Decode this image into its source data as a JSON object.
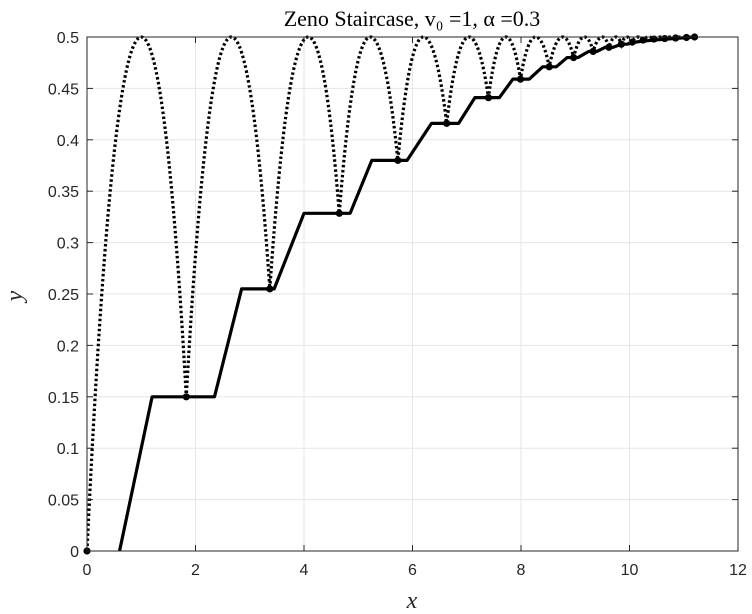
{
  "chart_data": {
    "type": "line",
    "title": "Zeno Staircase, v₀ =1, α =0.3",
    "xlabel": "x",
    "ylabel": "y",
    "xlim": [
      0,
      12
    ],
    "ylim": [
      0,
      0.5
    ],
    "x_ticks": [
      "0",
      "2",
      "4",
      "6",
      "8",
      "10",
      "12"
    ],
    "y_ticks": [
      "0",
      "0.05",
      "0.1",
      "0.15",
      "0.2",
      "0.25",
      "0.3",
      "0.35",
      "0.4",
      "0.45",
      "0.5"
    ],
    "grid": true,
    "colors": {
      "line": "#000000",
      "grid": "#e6e6e6",
      "axis": "#262626"
    },
    "series": [
      {
        "style": "dotted",
        "description": "bouncing arcs",
        "points": [
          [
            0,
            0
          ],
          [
            1.0,
            0.5
          ],
          [
            1.83,
            0.15
          ],
          [
            2.66,
            0.5
          ],
          [
            3.37,
            0.255
          ],
          [
            4.08,
            0.5
          ],
          [
            4.65,
            0.3285
          ],
          [
            5.22,
            0.5
          ],
          [
            5.73,
            0.38
          ],
          [
            6.2,
            0.5
          ],
          [
            6.63,
            0.416
          ],
          [
            7.04,
            0.5
          ],
          [
            7.4,
            0.441
          ],
          [
            7.72,
            0.5
          ],
          [
            7.99,
            0.459
          ],
          [
            8.27,
            0.5
          ],
          [
            8.52,
            0.471
          ],
          [
            8.77,
            0.5
          ],
          [
            8.97,
            0.48
          ],
          [
            9.17,
            0.5
          ],
          [
            9.33,
            0.486
          ],
          [
            9.5,
            0.5
          ],
          [
            9.62,
            0.49
          ],
          [
            9.75,
            0.5
          ],
          [
            9.85,
            0.493
          ],
          [
            9.95,
            0.5
          ],
          [
            10.05,
            0.495
          ],
          [
            10.15,
            0.5
          ],
          [
            10.25,
            0.497
          ],
          [
            10.35,
            0.5
          ],
          [
            10.45,
            0.498
          ],
          [
            10.55,
            0.5
          ],
          [
            10.65,
            0.4985
          ],
          [
            10.75,
            0.5
          ],
          [
            10.85,
            0.499
          ],
          [
            10.95,
            0.5
          ],
          [
            11.05,
            0.4995
          ],
          [
            11.2,
            0.5
          ]
        ]
      },
      {
        "style": "solid",
        "description": "staircase",
        "points": [
          [
            0.6,
            0
          ],
          [
            1.2,
            0.15
          ],
          [
            2.35,
            0.15
          ],
          [
            2.85,
            0.255
          ],
          [
            3.45,
            0.255
          ],
          [
            4.0,
            0.3285
          ],
          [
            4.85,
            0.3285
          ],
          [
            5.25,
            0.38
          ],
          [
            5.9,
            0.38
          ],
          [
            6.35,
            0.416
          ],
          [
            6.85,
            0.416
          ],
          [
            7.15,
            0.441
          ],
          [
            7.6,
            0.441
          ],
          [
            7.85,
            0.459
          ],
          [
            8.15,
            0.459
          ],
          [
            8.4,
            0.471
          ],
          [
            8.65,
            0.471
          ],
          [
            8.85,
            0.48
          ],
          [
            9.05,
            0.48
          ],
          [
            9.25,
            0.486
          ],
          [
            9.4,
            0.486
          ],
          [
            9.55,
            0.49
          ],
          [
            9.7,
            0.49
          ],
          [
            9.85,
            0.493
          ],
          [
            9.95,
            0.493
          ],
          [
            10.1,
            0.495
          ],
          [
            10.25,
            0.496
          ],
          [
            10.45,
            0.497
          ],
          [
            10.7,
            0.498
          ],
          [
            10.95,
            0.499
          ],
          [
            11.2,
            0.5
          ]
        ]
      },
      {
        "style": "markers",
        "description": "impact points",
        "points": [
          [
            0,
            0
          ],
          [
            1.83,
            0.15
          ],
          [
            3.37,
            0.255
          ],
          [
            4.65,
            0.3285
          ],
          [
            5.73,
            0.38
          ],
          [
            6.63,
            0.416
          ],
          [
            7.4,
            0.441
          ],
          [
            7.99,
            0.459
          ],
          [
            8.52,
            0.471
          ],
          [
            8.97,
            0.48
          ],
          [
            9.33,
            0.486
          ],
          [
            9.62,
            0.49
          ],
          [
            9.85,
            0.493
          ],
          [
            10.05,
            0.495
          ],
          [
            10.25,
            0.497
          ],
          [
            10.45,
            0.498
          ],
          [
            10.65,
            0.4985
          ],
          [
            10.85,
            0.499
          ],
          [
            11.05,
            0.4995
          ],
          [
            11.2,
            0.5
          ]
        ]
      }
    ]
  }
}
